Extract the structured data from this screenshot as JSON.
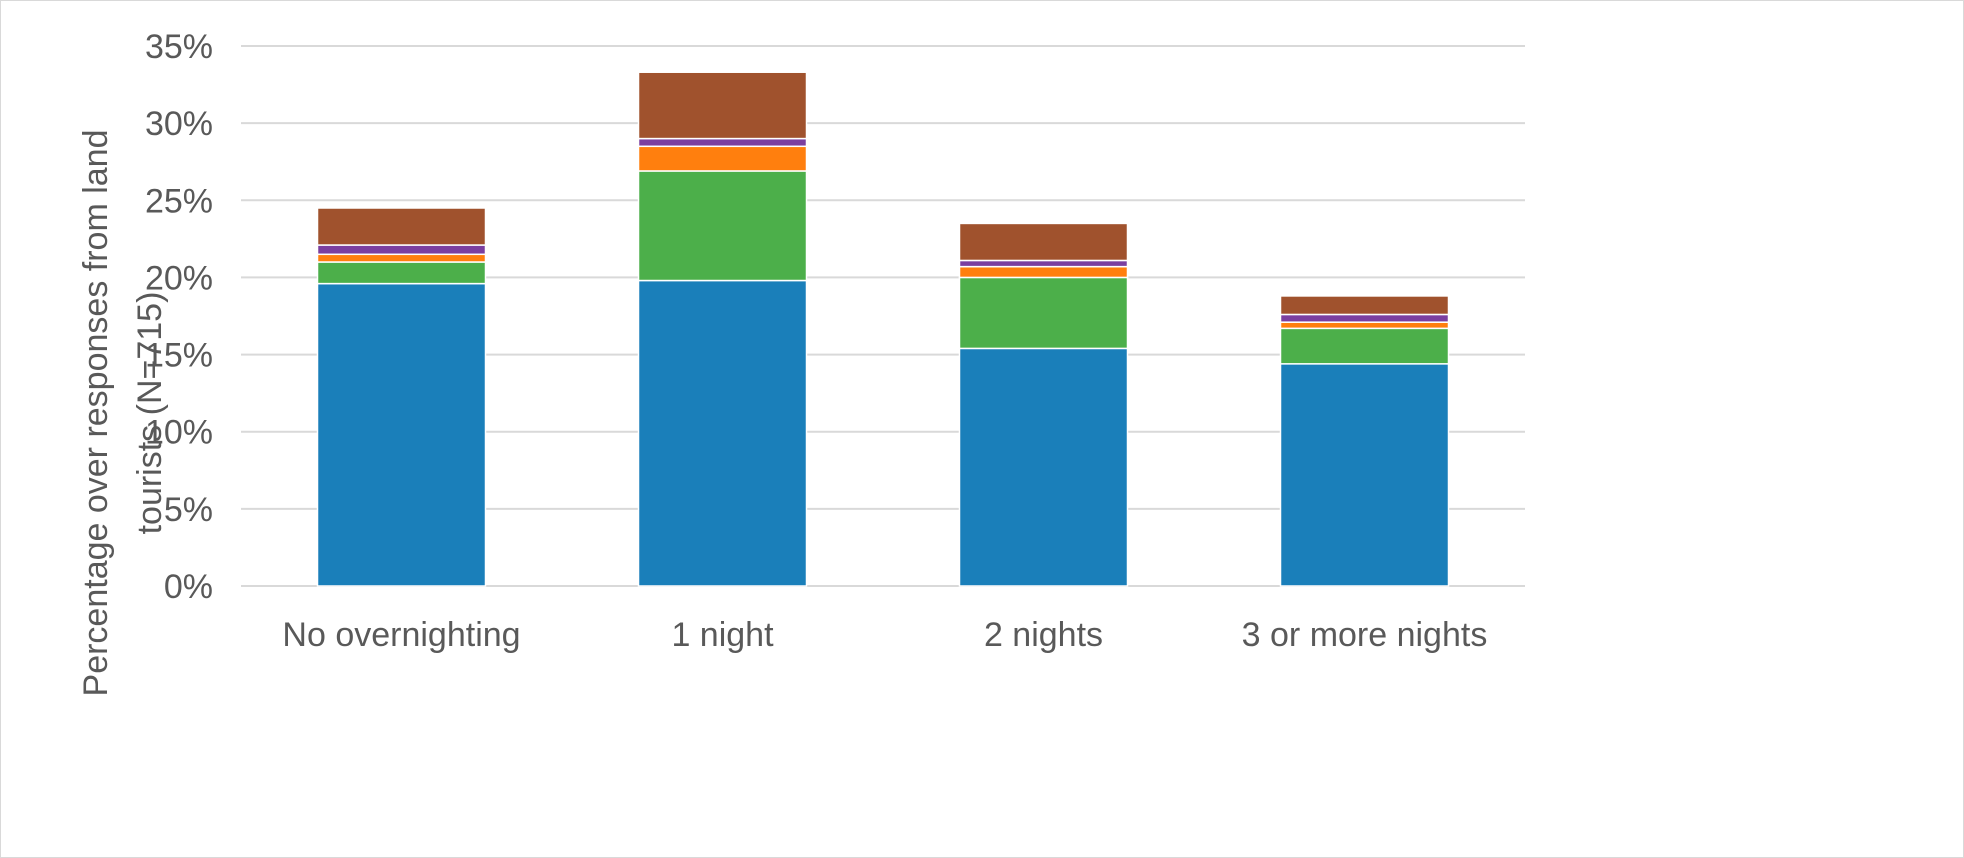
{
  "chart_data": {
    "type": "bar",
    "stacked": true,
    "categories": [
      "No overnighting",
      "1 night",
      "2 nights",
      "3 or more nights"
    ],
    "ylabel_lines": [
      "Percentage over responses from land",
      "tourists (N=715)"
    ],
    "xlabel": "",
    "ylim": [
      0,
      35
    ],
    "y_ticks": [
      0,
      5,
      10,
      15,
      20,
      25,
      30,
      35
    ],
    "y_tick_labels": [
      "0%",
      "5%",
      "10%",
      "15%",
      "20%",
      "25%",
      "30%",
      "35%"
    ],
    "grid": true,
    "legend": "none",
    "series": [
      {
        "color": "#1a7fba",
        "values": [
          19.6,
          19.8,
          15.4,
          14.4
        ]
      },
      {
        "color": "#4caf4a",
        "values": [
          1.4,
          7.1,
          4.6,
          2.3
        ]
      },
      {
        "color": "#ff7f0e",
        "values": [
          0.5,
          1.6,
          0.7,
          0.4
        ]
      },
      {
        "color": "#7b3fa0",
        "values": [
          0.6,
          0.5,
          0.4,
          0.5
        ]
      },
      {
        "color": "#a0522d",
        "values": [
          2.4,
          4.3,
          2.4,
          1.2
        ]
      }
    ]
  }
}
